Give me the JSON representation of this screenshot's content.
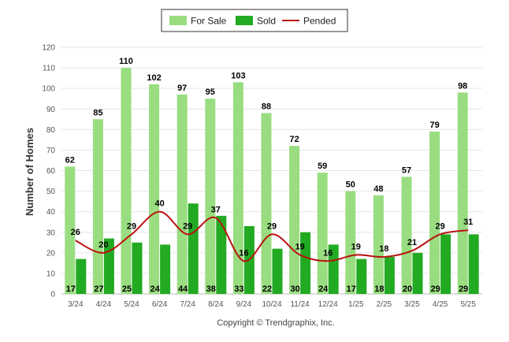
{
  "chart_data": {
    "type": "bar",
    "categories": [
      "3/24",
      "4/24",
      "5/24",
      "6/24",
      "7/24",
      "8/24",
      "9/24",
      "10/24",
      "11/24",
      "12/24",
      "1/25",
      "2/25",
      "3/25",
      "4/25",
      "5/25"
    ],
    "series": [
      {
        "name": "For Sale",
        "type": "bar",
        "color": "#99dd80",
        "values": [
          62,
          85,
          110,
          102,
          97,
          95,
          103,
          88,
          72,
          59,
          50,
          48,
          57,
          79,
          98
        ]
      },
      {
        "name": "Sold",
        "type": "bar",
        "color": "#22aa22",
        "values": [
          17,
          27,
          25,
          24,
          44,
          38,
          33,
          22,
          30,
          24,
          17,
          18,
          20,
          29,
          29
        ]
      },
      {
        "name": "Pended",
        "type": "line",
        "color": "#bb1111",
        "values": [
          26,
          20,
          29,
          40,
          29,
          37,
          16,
          29,
          19,
          16,
          19,
          18,
          21,
          29,
          31
        ]
      }
    ],
    "ylabel": "Number of Homes",
    "xlabel": "",
    "ylim": [
      0,
      120
    ],
    "yticks": [
      0,
      10,
      20,
      30,
      40,
      50,
      60,
      70,
      80,
      90,
      100,
      110,
      120
    ],
    "grid": true,
    "legend_position": "top-center"
  },
  "footer": {
    "copyright": "Copyright © Trendgraphix, Inc."
  }
}
